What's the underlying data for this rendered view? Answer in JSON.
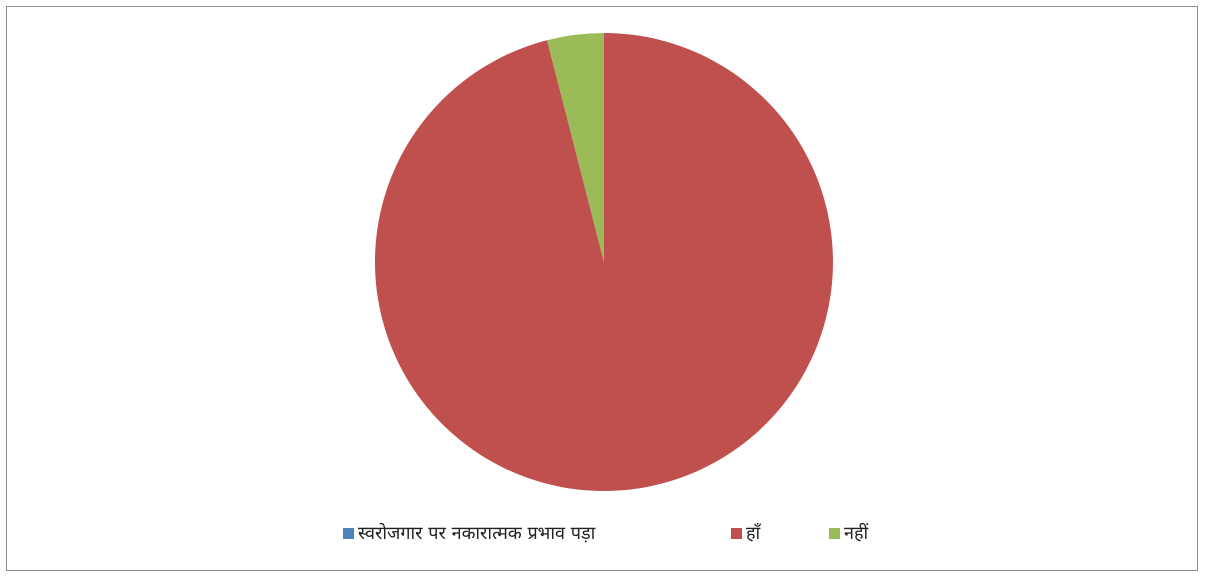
{
  "chart_data": {
    "type": "pie",
    "title": "",
    "start_angle_deg": 0,
    "direction": "clockwise",
    "slices": [
      {
        "label": "स्वरोजगार पर नकारात्मक प्रभाव पड़ा",
        "value": 0,
        "color": "#4f81bd"
      },
      {
        "label": "हाँ",
        "value": 96,
        "color": "#c0504d"
      },
      {
        "label": "नहीं",
        "value": 4,
        "color": "#9bbb59"
      }
    ],
    "legend_position": "bottom"
  }
}
